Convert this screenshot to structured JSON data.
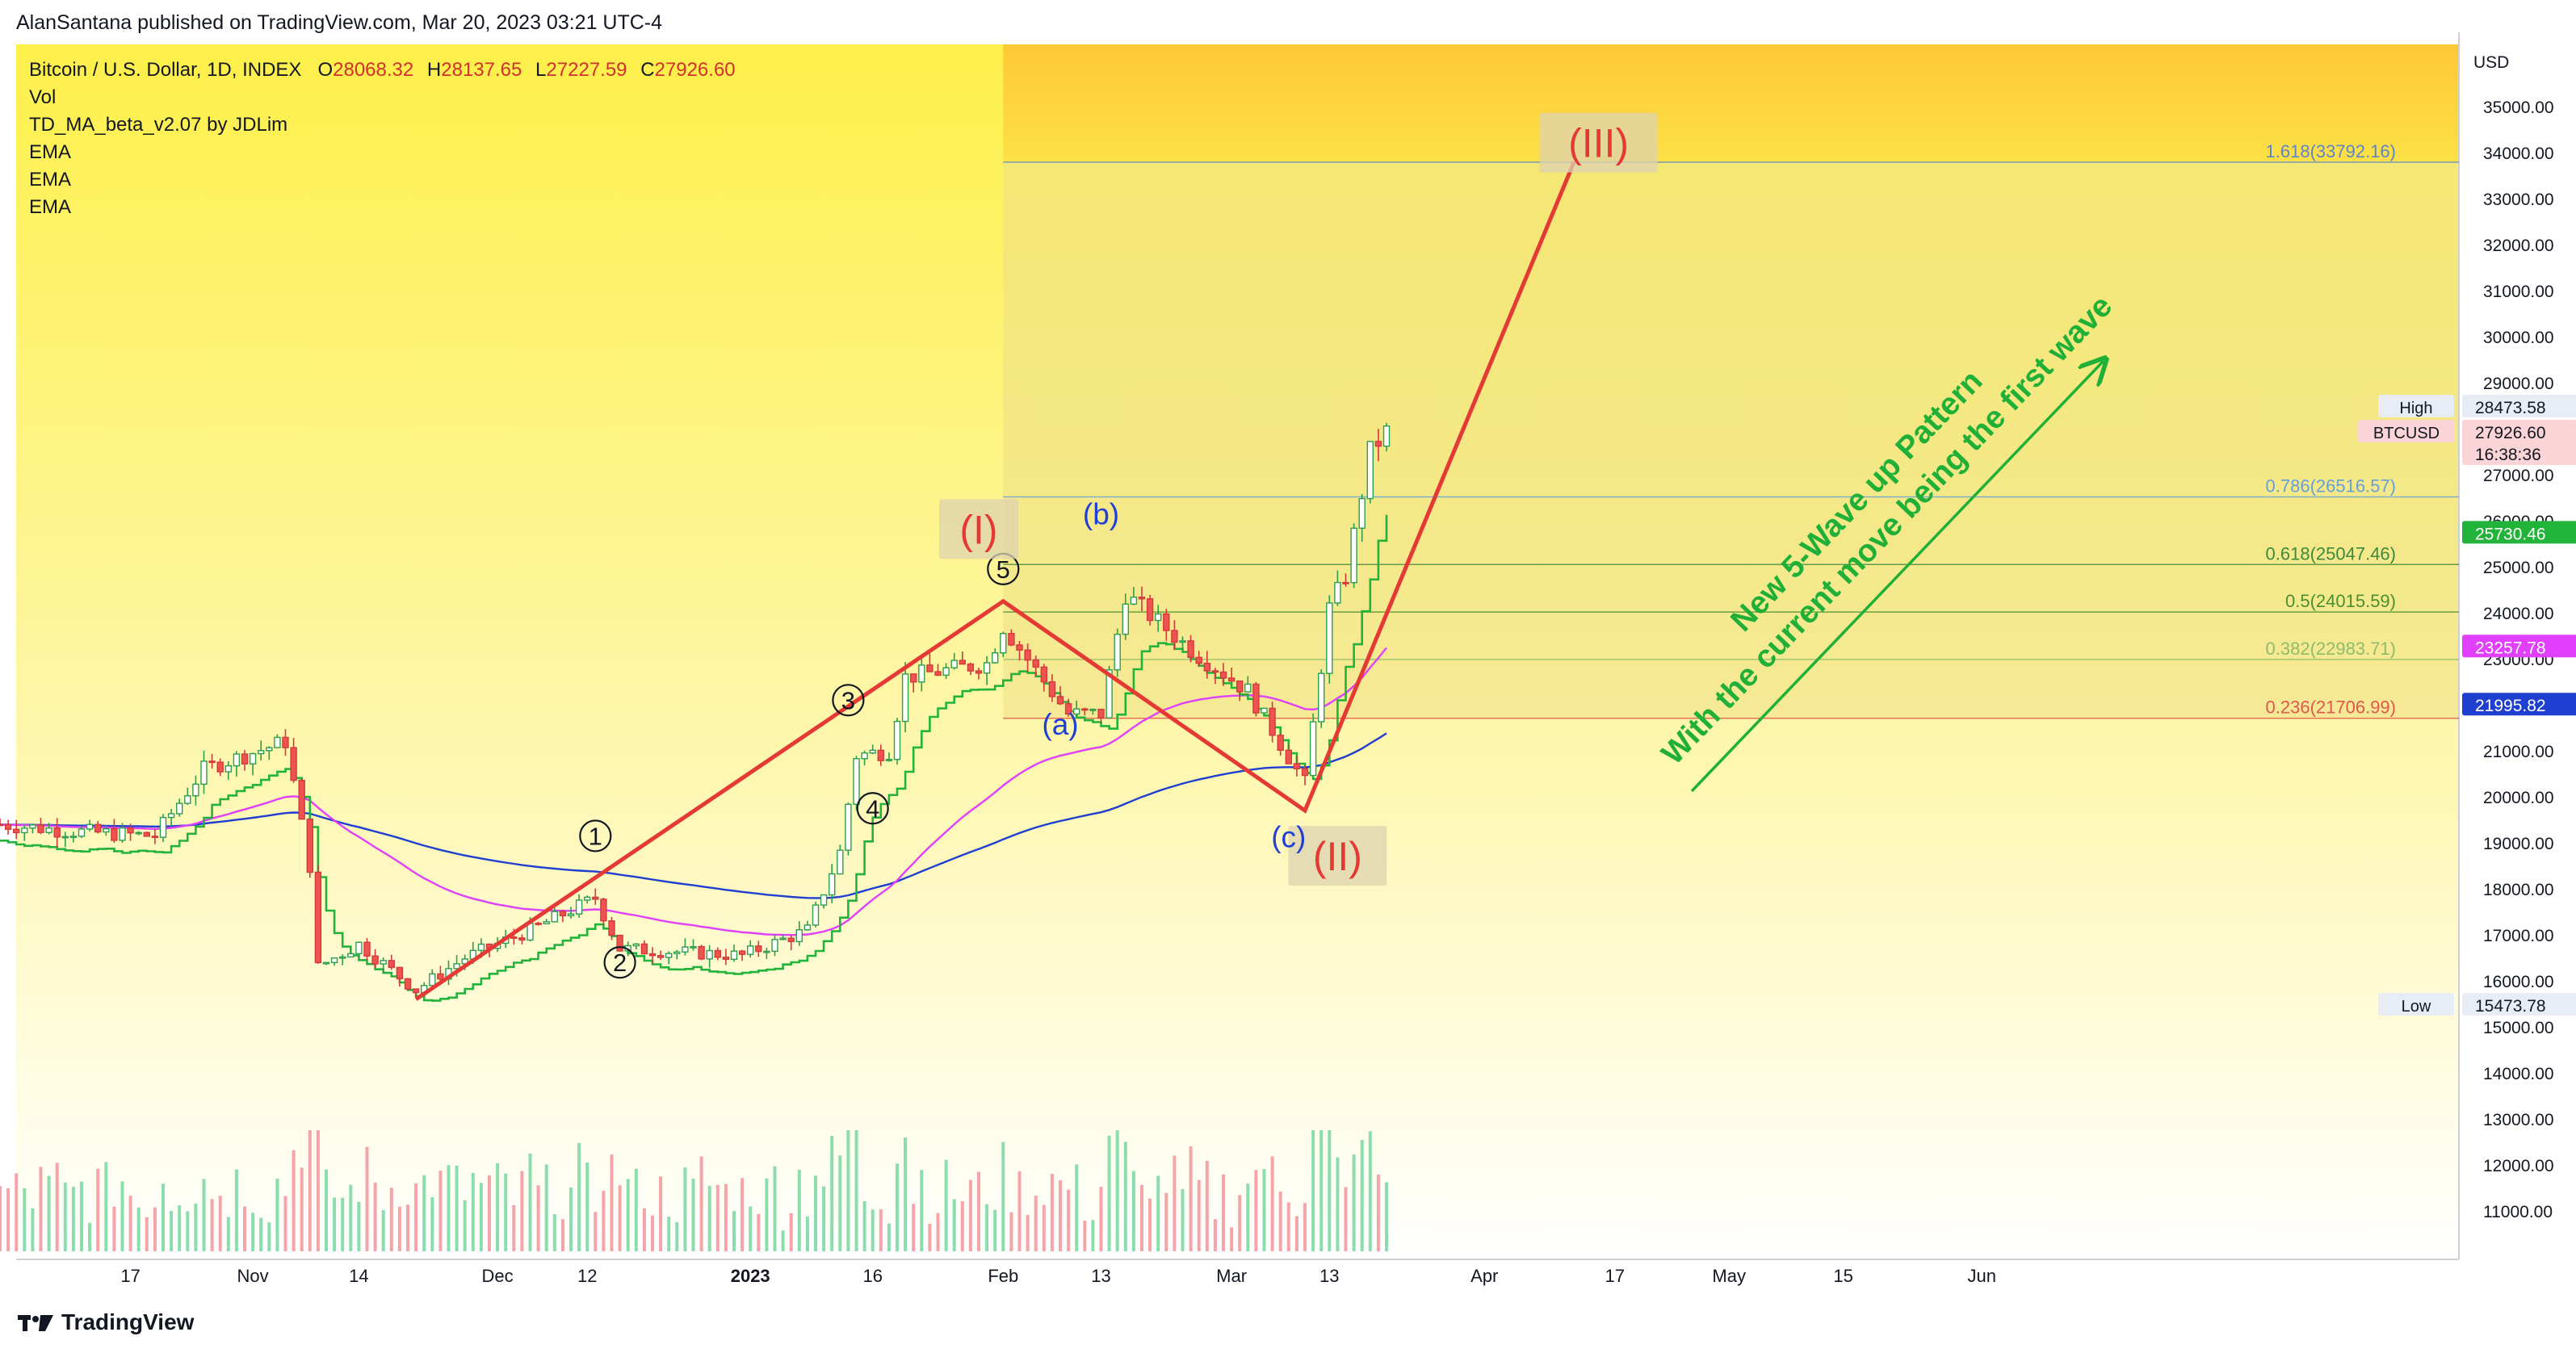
{
  "header": {
    "published": "AlanSantana published on TradingView.com, Mar 20, 2023 03:21 UTC-4"
  },
  "legend": {
    "symbol": "Bitcoin / U.S. Dollar, 1D, INDEX",
    "open_label": "O",
    "open": "28068.32",
    "high_label": "H",
    "high": "28137.65",
    "low_label": "L",
    "low": "27227.59",
    "close_label": "C",
    "close": "27926.60",
    "indicators": [
      "Vol",
      "TD_MA_beta_v2.07 by JDLim",
      "EMA",
      "EMA",
      "EMA"
    ]
  },
  "footer": {
    "brand": "TradingView"
  },
  "colors": {
    "up": "#26a69a",
    "down": "#ef5350",
    "wave_line": "#e53935",
    "ema_blue": "#1e3fd0",
    "ema_pink": "#e040fb",
    "td_green": "#22b33a",
    "annotation_green": "#20b038",
    "wave_label_blue": "#1f3fd6",
    "wave_label_red": "#e53935"
  },
  "chart_data": {
    "type": "candlestick",
    "currency": "USD",
    "ylim": [
      10000,
      36000
    ],
    "y_ticks": [
      11000,
      12000,
      13000,
      14000,
      15000,
      16000,
      17000,
      18000,
      19000,
      20000,
      21000,
      22000,
      23000,
      24000,
      25000,
      26000,
      27000,
      28000,
      29000,
      30000,
      31000,
      32000,
      33000,
      34000,
      35000
    ],
    "x_ticks": [
      "17",
      "Nov",
      "14",
      "Dec",
      "12",
      "2023",
      "16",
      "Feb",
      "13",
      "Mar",
      "13",
      "Apr",
      "17",
      "May",
      "15",
      "Jun"
    ],
    "price_labels": {
      "high_label": "High",
      "high": "28473.58",
      "symbol": "BTCUSD",
      "last": "27926.60",
      "countdown": "16:38:36",
      "low_label": "Low",
      "low": "15473.78",
      "ema_fast": "25730.46",
      "ema_mid": "23257.78",
      "ema_slow": "21995.82"
    },
    "fibonacci": [
      {
        "ratio": "1.618",
        "price": 33792.16,
        "label": "1.618(33792.16)",
        "color": "#5b86c9"
      },
      {
        "ratio": "0.786",
        "price": 26516.57,
        "label": "0.786(26516.57)",
        "color": "#64a0d8"
      },
      {
        "ratio": "0.618",
        "price": 25047.46,
        "label": "0.618(25047.46)",
        "color": "#3d8a3d"
      },
      {
        "ratio": "0.5",
        "price": 24015.59,
        "label": "0.5(24015.59)",
        "color": "#4a8f2e"
      },
      {
        "ratio": "0.382",
        "price": 22983.71,
        "label": "0.382(22983.71)",
        "color": "#8fbc6a"
      },
      {
        "ratio": "0.236",
        "price": 21706.99,
        "label": "0.236(21706.99)",
        "color": "#e0574b"
      }
    ],
    "wave_path": [
      {
        "date": "2022-11-21",
        "price": 15600
      },
      {
        "date": "2023-02-01",
        "price": 24250
      },
      {
        "date": "2023-03-10",
        "price": 19700
      },
      {
        "date": "2023-04-12",
        "price": 33800
      }
    ],
    "wave_labels": [
      {
        "text": "1",
        "date": "2022-12-13",
        "price": 19150,
        "style": "circle"
      },
      {
        "text": "2",
        "date": "2022-12-16",
        "price": 16400,
        "style": "circle"
      },
      {
        "text": "3",
        "date": "2023-01-13",
        "price": 22100,
        "style": "circle"
      },
      {
        "text": "4",
        "date": "2023-01-16",
        "price": 19750,
        "style": "circle"
      },
      {
        "text": "5",
        "date": "2023-02-01",
        "price": 24950,
        "style": "circle"
      },
      {
        "text": "(I)",
        "date": "2023-01-29",
        "price": 25800,
        "style": "red-box"
      },
      {
        "text": "(II)",
        "date": "2023-03-14",
        "price": 18700,
        "style": "red-box"
      },
      {
        "text": "(III)",
        "date": "2023-04-15",
        "price": 34200,
        "style": "red-box"
      },
      {
        "text": "(a)",
        "date": "2023-02-08",
        "price": 21350,
        "style": "blue"
      },
      {
        "text": "(b)",
        "date": "2023-02-13",
        "price": 25920,
        "style": "blue"
      },
      {
        "text": "(c)",
        "date": "2023-03-08",
        "price": 18900,
        "style": "blue"
      }
    ],
    "annotation": {
      "line1": "New 5-Wave up Pattern",
      "line2": "With the current move being the first wave"
    }
  }
}
